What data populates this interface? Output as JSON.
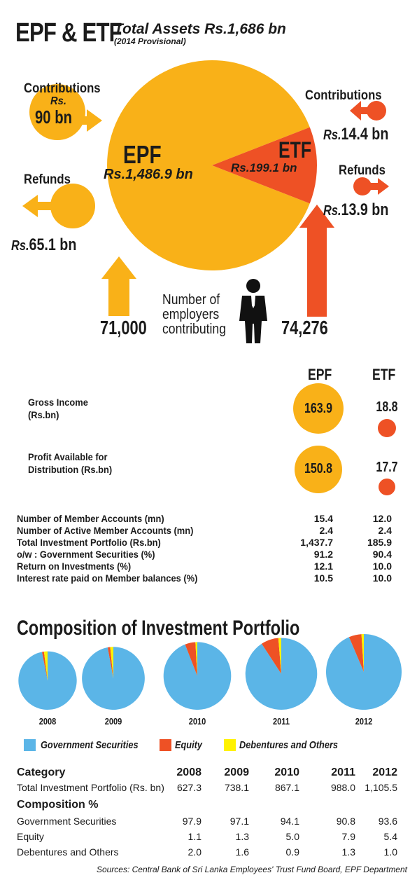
{
  "header": {
    "title": "EPF & ETF",
    "total_assets": "Total Assets Rs.1,686 bn",
    "provisional": "(2014 Provisional)"
  },
  "top_chart": {
    "epf_label": "EPF",
    "epf_value": "Rs.1,486.9 bn",
    "etf_label": "ETF",
    "etf_value": "Rs.199.1 bn",
    "epf_contributions_label": "Contributions",
    "epf_contributions_rs": "Rs.",
    "epf_contributions_value": "90 bn",
    "epf_refunds_label": "Refunds",
    "epf_refunds_rs": "Rs.",
    "epf_refunds_value": "65.1 bn",
    "etf_contributions_label": "Contributions",
    "etf_contributions_rs": "Rs.",
    "etf_contributions_value": "14.4 bn",
    "etf_refunds_label": "Refunds",
    "etf_refunds_rs": "Rs.",
    "etf_refunds_value": "13.9 bn",
    "employers_line1": "Number of",
    "employers_line2": "employers",
    "employers_line3": "contributing",
    "epf_employers": "71,000",
    "etf_employers": "74,276"
  },
  "summary": {
    "col_epf": "EPF",
    "col_etf": "ETF",
    "gross_label_1": "Gross Income",
    "gross_label_2": "(Rs.bn)",
    "gross_epf": "163.9",
    "gross_etf": "18.8",
    "profit_label_1": "Profit Available for",
    "profit_label_2": "Distribution (Rs.bn)",
    "profit_epf": "150.8",
    "profit_etf": "17.7",
    "rows": [
      {
        "label": "Number of Member Accounts (mn)",
        "epf": "15.4",
        "etf": "12.0"
      },
      {
        "label": "Number of Active Member Accounts (mn)",
        "epf": "2.4",
        "etf": "2.4"
      },
      {
        "label": "Total Investment Portfolio (Rs.bn)",
        "epf": "1,437.7",
        "etf": "185.9"
      },
      {
        "label": "o/w : Government Securities (%)",
        "epf": "91.2",
        "etf": "90.4"
      },
      {
        "label": "Return on Investments (%)",
        "epf": "12.1",
        "etf": "10.0"
      },
      {
        "label": "Interest rate paid on Member balances (%)",
        "epf": "10.5",
        "etf": "10.0"
      }
    ]
  },
  "composition": {
    "title": "Composition of Investment Portfolio",
    "legend": [
      "Government Securities",
      "Equity",
      "Debentures and Others"
    ],
    "table": {
      "category_header": "Category",
      "years": [
        "2008",
        "2009",
        "2010",
        "2011",
        "2012"
      ],
      "total_label": "Total Investment Portfolio (Rs. bn)",
      "totals": [
        "627.3",
        "738.1",
        "867.1",
        "988.0",
        "1,105.5"
      ],
      "composition_header": "Composition %",
      "rows": [
        {
          "label": "Government Securities",
          "values": [
            "97.9",
            "97.1",
            "94.1",
            "90.8",
            "93.6"
          ]
        },
        {
          "label": "Equity",
          "values": [
            "1.1",
            "1.3",
            "5.0",
            "7.9",
            "5.4"
          ]
        },
        {
          "label": "Debentures and Others",
          "values": [
            "2.0",
            "1.6",
            "0.9",
            "1.3",
            "1.0"
          ]
        }
      ]
    }
  },
  "source": "Sources: Central Bank of Sri Lanka Employees' Trust Fund Board, EPF Department",
  "colors": {
    "epf": "#f9b118",
    "etf": "#ee5125",
    "gov": "#5bb5e7",
    "equity": "#ee5125",
    "debentures": "#fff200"
  },
  "chart_data": [
    {
      "type": "pie",
      "categories": [
        "EPF",
        "ETF"
      ],
      "values": [
        1486.9,
        199.1
      ]
    },
    {
      "type": "pie",
      "categories": [
        "2008",
        "2009",
        "2010",
        "2011",
        "2012"
      ],
      "series": [
        {
          "name": "Government Securities",
          "values": [
            97.9,
            97.1,
            94.1,
            90.8,
            93.6
          ]
        },
        {
          "name": "Equity",
          "values": [
            1.1,
            1.3,
            5.0,
            7.9,
            5.4
          ]
        },
        {
          "name": "Debentures and Others",
          "values": [
            2.0,
            1.6,
            0.9,
            1.3,
            1.0
          ]
        }
      ],
      "totals": [
        627.3,
        738.1,
        867.1,
        988.0,
        1105.5
      ]
    }
  ]
}
